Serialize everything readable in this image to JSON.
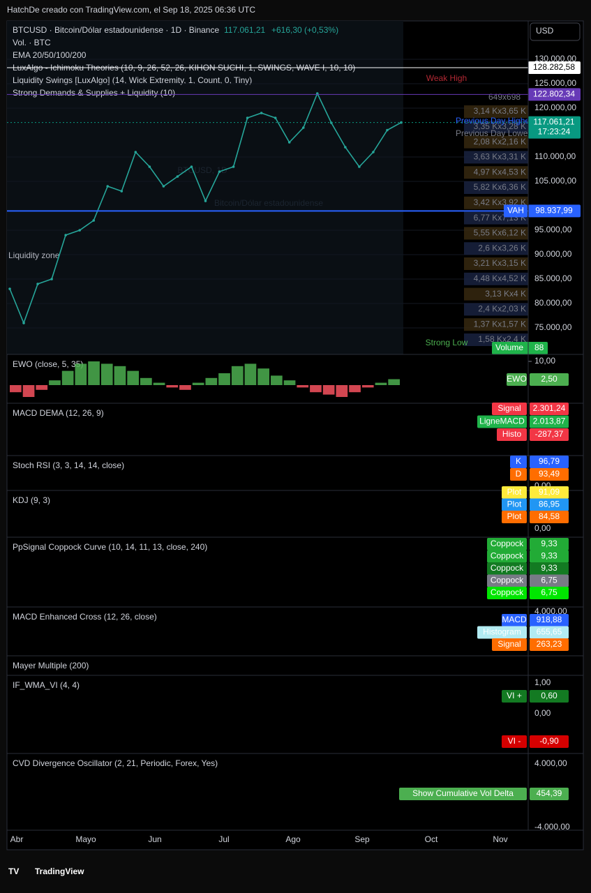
{
  "header": {
    "attribution": "HatchDe creado con TradingView.com, el Sep 18, 2025 06:36 UTC"
  },
  "symbol": {
    "title": "BTCUSD · Bitcoin/Dólar estadounidense · 1D · Binance",
    "price": "117.061,21",
    "change": "+616,30 (+0,53%)"
  },
  "currency": "USD",
  "main_indicators": [
    "Vol. · BTC",
    "EMA 20/50/100/200",
    "LuxAlgo - Ichimoku Theories (10, 9, 26, 52, 26, KIHON SUCHI, 1, SWINGS, WAVE I, 10, 10)",
    "Liquidity Swings [LuxAlgo] (14, Wick Extremity, 1, Count, 0, Tiny)",
    "Strong Demands & Supplies + Liquidity (10)"
  ],
  "chart_labels": {
    "weak_high": "Weak High",
    "strong_low": "Strong Low",
    "prev_high": "Previous Day Highest P",
    "prev_low": "Previous Day Lowest P",
    "watermark": "BTCUSD, 1D",
    "watermark_sub": "Bitcoin/Dólar estadounidense",
    "liquidity_zone": "Liquidity zone"
  },
  "price_axis": {
    "ylim": [
      69571,
      137857
    ],
    "yticks": [
      {
        "value": 130000,
        "label": "130.000,00"
      },
      {
        "value": 125000,
        "label": "125.000,00"
      },
      {
        "value": 120000,
        "label": "120.000,00"
      },
      {
        "value": 110000,
        "label": "110.000,00"
      },
      {
        "value": 105000,
        "label": "105.000,00"
      },
      {
        "value": 95000,
        "label": "95.000,00"
      },
      {
        "value": 90000,
        "label": "90.000,00"
      },
      {
        "value": 85000,
        "label": "85.000,00"
      },
      {
        "value": 80000,
        "label": "80.000,00"
      },
      {
        "value": 75000,
        "label": "75.000,00"
      }
    ],
    "badges": [
      {
        "value": 128282.58,
        "label": "128.282,58",
        "bg": "#ffffff",
        "fg": "#000000"
      },
      {
        "value": 122802.34,
        "label": "122.802,34",
        "bg": "#673ab7",
        "fg": "#ffffff"
      },
      {
        "value": 117061.21,
        "label": "117.061,21",
        "sub": "17:23:24",
        "bg": "#089981",
        "fg": "#ffffff"
      },
      {
        "value": 98937.99,
        "name": "VAH",
        "label": "98.937,99",
        "bg": "#2962ff",
        "fg": "#ffffff"
      }
    ]
  },
  "price_series": {
    "name": "BTCUSD",
    "color": "#26a69a",
    "values": [
      83000,
      76000,
      84000,
      85000,
      94000,
      95000,
      97000,
      104000,
      103000,
      111000,
      108000,
      104000,
      106000,
      108000,
      101000,
      107000,
      108000,
      118000,
      119000,
      118000,
      113000,
      116000,
      123000,
      117000,
      112000,
      108000,
      111000,
      115500,
      117061
    ]
  },
  "volume_profile": {
    "total": "649x698",
    "rows": [
      "3,14 Kx3,65 K",
      "3,35 Kx3,28 K",
      "2,08 Kx2,16 K",
      "3,63 Kx3,31 K",
      "4,97 Kx4,53 K",
      "5,82 Kx6,36 K",
      "3,42 Kx3,92 K",
      "6,77 Kx7,13 K",
      "5,55 Kx6,12 K",
      "2,6 Kx3,26 K",
      "3,21 Kx3,15 K",
      "4,48 Kx4,52 K",
      "3,13 Kx4 K",
      "2,4 Kx2,03 K",
      "1,37 Kx1,57 K",
      "1,58 Kx2,4 K"
    ]
  },
  "volume_badge": {
    "name": "Volume",
    "value": "88"
  },
  "ewo": {
    "ylim": [
      -10,
      10
    ],
    "yticks": [
      {
        "value": 10,
        "label": "10,00"
      }
    ],
    "values": [
      -3,
      -5,
      -2,
      2,
      6,
      9,
      10,
      9,
      8,
      6,
      3,
      1,
      -1,
      -2,
      1,
      3,
      5,
      8,
      9,
      7,
      4,
      2,
      -1,
      -3,
      -4,
      -5,
      -3,
      -1,
      1,
      2.5
    ]
  },
  "panes": [
    {
      "title": "EWO (close, 5, 35)",
      "axis": [],
      "badges": [
        {
          "name": "EWO",
          "value": "2,50",
          "color": "#4caf50"
        }
      ]
    },
    {
      "title": "MACD DEMA (12, 26, 9)",
      "axis": [],
      "badges": [
        {
          "name": "Signal",
          "value": "2.301,24",
          "color": "#f23645"
        },
        {
          "name": "LigneMACD",
          "value": "2.013,87",
          "color": "#1fb34a"
        },
        {
          "name": "Histo",
          "value": "-287,37",
          "color": "#f23645"
        }
      ]
    },
    {
      "title": "Stoch RSI (3, 3, 14, 14, close)",
      "axis": [
        "0,00"
      ],
      "badges": [
        {
          "name": "K",
          "value": "96,79",
          "color": "#2962ff"
        },
        {
          "name": "D",
          "value": "93,49",
          "color": "#ff6d00"
        }
      ]
    },
    {
      "title": "KDJ (9, 3)",
      "axis": [
        "0,00"
      ],
      "badges": [
        {
          "name": "Plot",
          "value": "91,09",
          "color": "#ffeb3b"
        },
        {
          "name": "Plot",
          "value": "86,95",
          "color": "#2196f3"
        },
        {
          "name": "Plot",
          "value": "84,58",
          "color": "#ff6d00"
        }
      ]
    },
    {
      "title": "PpSignal Coppock Curve (10, 14, 11, 13, close, 240)",
      "axis": [],
      "badges": [
        {
          "name": "Coppock",
          "value": "9,33",
          "color": "#22ab36"
        },
        {
          "name": "Coppock",
          "value": "9,33",
          "color": "#22ab36"
        },
        {
          "name": "Coppock",
          "value": "9,33",
          "color": "#137a22"
        },
        {
          "name": "Coppock",
          "value": "6,75",
          "color": "#787b86"
        },
        {
          "name": "Coppock",
          "value": "6,75",
          "color": "#00e600"
        }
      ]
    },
    {
      "title": "MACD Enhanced Cross (12, 26, close)",
      "axis": [
        "4.000,00"
      ],
      "badges": [
        {
          "name": "MACD",
          "value": "918,88",
          "color": "#2962ff"
        },
        {
          "name": "Histogram",
          "value": "655,65",
          "color": "#b2ebf2"
        },
        {
          "name": "Signal",
          "value": "263,23",
          "color": "#ff6d00"
        }
      ]
    },
    {
      "title": "Mayer Multiple (200)",
      "axis": [],
      "badges": []
    },
    {
      "title": "IF_WMA_VI (4, 4)",
      "axis": [
        "1,00",
        "0,00"
      ],
      "badges": [
        {
          "name": "VI +",
          "value": "0,60",
          "color": "#137a22"
        },
        {
          "name": "VI -",
          "value": "-0,90",
          "color": "#d50000"
        }
      ]
    },
    {
      "title": "CVD Divergence Oscillator (2, 21, Periodic, Forex, Yes)",
      "axis": [
        "4.000,00",
        "-4.000,00"
      ],
      "badges": [
        {
          "name": "Show Cumulative Vol Delta",
          "value": "454,39",
          "color": "#4caf50"
        }
      ]
    }
  ],
  "months": [
    "Abr",
    "Mayo",
    "Jun",
    "Jul",
    "Ago",
    "Sep",
    "Oct",
    "Nov"
  ],
  "footer": {
    "logo": "TradingView"
  }
}
